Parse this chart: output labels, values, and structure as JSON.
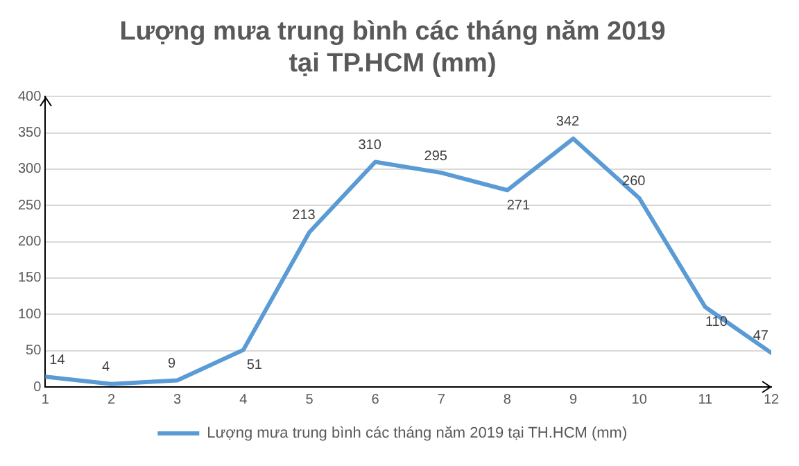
{
  "chart_data": {
    "type": "line",
    "title": "Lượng mưa trung bình các tháng năm 2019\ntại TP.HCM (mm)",
    "x": [
      1,
      2,
      3,
      4,
      5,
      6,
      7,
      8,
      9,
      10,
      11,
      12
    ],
    "series": [
      {
        "name": "Lượng mưa trung bình các tháng năm 2019 tại TH.HCM (mm)",
        "color": "#5b9bd5",
        "values": [
          14,
          4,
          9,
          51,
          213,
          310,
          295,
          271,
          342,
          260,
          110,
          47
        ]
      }
    ],
    "xlim": [
      1,
      12
    ],
    "xticks": [
      1,
      2,
      3,
      4,
      5,
      6,
      7,
      8,
      9,
      10,
      11,
      12
    ],
    "ylim": [
      0,
      400
    ],
    "yticks": [
      0,
      50,
      100,
      150,
      200,
      250,
      300,
      350,
      400
    ],
    "grid": "y",
    "legend": "bottom",
    "data_labels": true,
    "marker": "none",
    "line_style": "solid"
  }
}
